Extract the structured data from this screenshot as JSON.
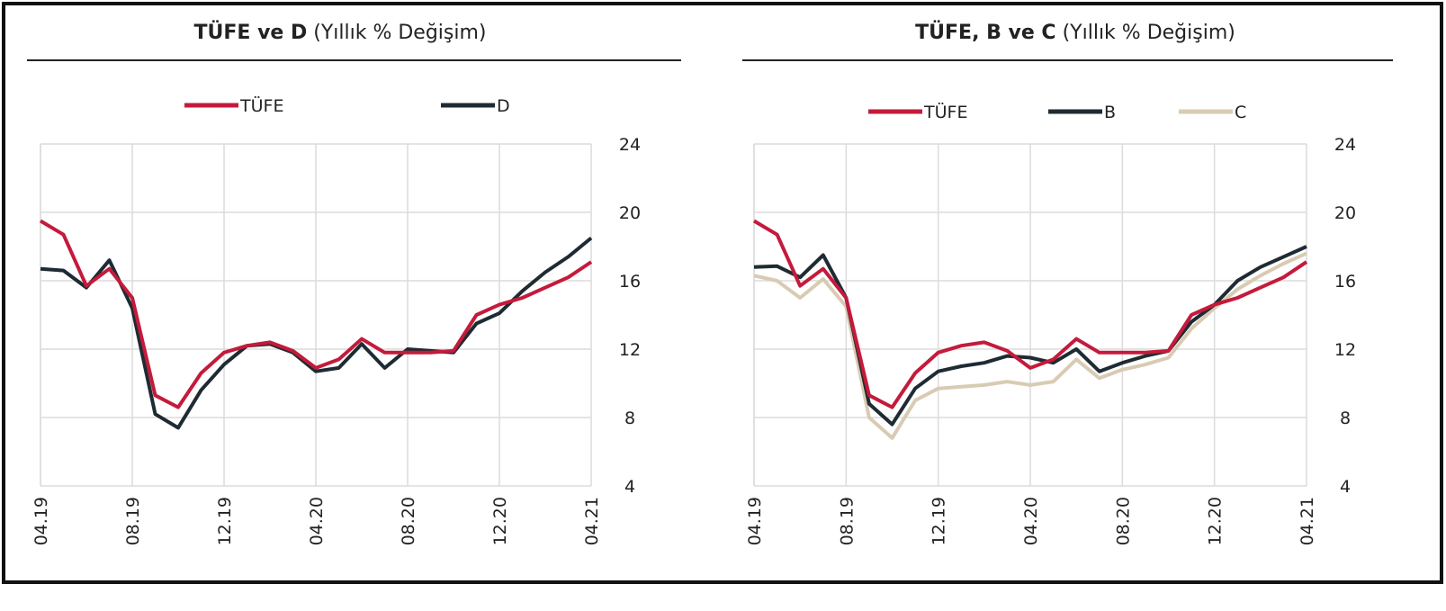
{
  "chart_data": [
    {
      "type": "line",
      "title_bold": "TÜFE ve D",
      "title_rest": " (Yıllık % Değişim)",
      "x": [
        "04.19",
        "05.19",
        "06.19",
        "07.19",
        "08.19",
        "09.19",
        "10.19",
        "11.19",
        "12.19",
        "01.20",
        "02.20",
        "03.20",
        "04.20",
        "05.20",
        "06.20",
        "07.20",
        "08.20",
        "09.20",
        "10.20",
        "11.20",
        "12.20",
        "01.21",
        "02.21",
        "03.21",
        "04.21"
      ],
      "x_tick_labels": [
        "04.19",
        "08.19",
        "12.19",
        "04.20",
        "08.20",
        "12.20",
        "04.21"
      ],
      "ylim": [
        4,
        24
      ],
      "y_ticks": [
        4,
        8,
        12,
        16,
        20,
        24
      ],
      "y_axis_side": "right",
      "grid": true,
      "legend_position": "top",
      "series": [
        {
          "name": "TÜFE",
          "color": "#c41a3b",
          "values": [
            19.5,
            18.7,
            15.7,
            16.7,
            15.0,
            9.3,
            8.6,
            10.6,
            11.8,
            12.2,
            12.4,
            11.9,
            10.9,
            11.4,
            12.6,
            11.8,
            11.8,
            11.8,
            11.9,
            14.0,
            14.6,
            15.0,
            15.6,
            16.2,
            17.1
          ]
        },
        {
          "name": "D",
          "color": "#1e2b33",
          "values": [
            16.7,
            16.6,
            15.6,
            17.2,
            14.4,
            8.2,
            7.4,
            9.6,
            11.1,
            12.2,
            12.3,
            11.8,
            10.7,
            10.9,
            12.3,
            10.9,
            12.0,
            11.9,
            11.8,
            13.5,
            14.1,
            15.4,
            16.5,
            17.4,
            18.5
          ]
        }
      ]
    },
    {
      "type": "line",
      "title_bold": "TÜFE, B ve C",
      "title_rest": " (Yıllık % Değişim)",
      "x": [
        "04.19",
        "05.19",
        "06.19",
        "07.19",
        "08.19",
        "09.19",
        "10.19",
        "11.19",
        "12.19",
        "01.20",
        "02.20",
        "03.20",
        "04.20",
        "05.20",
        "06.20",
        "07.20",
        "08.20",
        "09.20",
        "10.20",
        "11.20",
        "12.20",
        "01.21",
        "02.21",
        "03.21",
        "04.21"
      ],
      "x_tick_labels": [
        "04.19",
        "08.19",
        "12.19",
        "04.20",
        "08.20",
        "12.20",
        "04.21"
      ],
      "ylim": [
        4,
        24
      ],
      "y_ticks": [
        4,
        8,
        12,
        16,
        20,
        24
      ],
      "y_axis_side": "right",
      "grid": true,
      "legend_position": "top",
      "series": [
        {
          "name": "TÜFE",
          "color": "#c41a3b",
          "values": [
            19.5,
            18.7,
            15.7,
            16.7,
            15.0,
            9.3,
            8.6,
            10.6,
            11.8,
            12.2,
            12.4,
            11.9,
            10.9,
            11.4,
            12.6,
            11.8,
            11.8,
            11.8,
            11.9,
            14.0,
            14.6,
            15.0,
            15.6,
            16.2,
            17.1
          ]
        },
        {
          "name": "B",
          "color": "#1e2b33",
          "values": [
            16.8,
            16.85,
            16.2,
            17.5,
            15.0,
            8.8,
            7.6,
            9.7,
            10.7,
            11.0,
            11.2,
            11.6,
            11.5,
            11.2,
            12.0,
            10.7,
            11.2,
            11.6,
            11.9,
            13.6,
            14.6,
            16.0,
            16.8,
            17.4,
            18.0
          ]
        },
        {
          "name": "C",
          "color": "#d9cbb3",
          "values": [
            16.3,
            16.0,
            15.0,
            16.1,
            14.5,
            8.0,
            6.8,
            9.0,
            9.7,
            9.8,
            9.9,
            10.1,
            9.9,
            10.1,
            11.4,
            10.3,
            10.8,
            11.1,
            11.5,
            13.2,
            14.4,
            15.5,
            16.3,
            17.0,
            17.6
          ]
        }
      ]
    }
  ]
}
